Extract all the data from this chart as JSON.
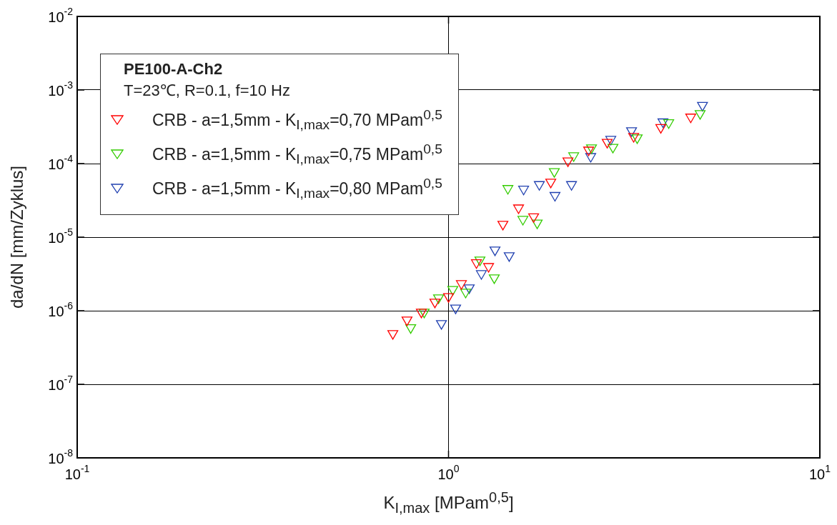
{
  "chart_data": {
    "type": "scatter",
    "xlabel": "K$_{I,max}$ [MPam$^{0,5}$]",
    "ylabel": "da/dN [mm/Zyklus]",
    "legend_title": "PE100-A-Ch2",
    "annotations": [
      "T=23℃, R=0.1, f=10 Hz"
    ],
    "log": "xy",
    "xlim": [
      0.1,
      10
    ],
    "ylim": [
      1e-08,
      0.01
    ],
    "xticks": [
      {
        "value": 0.1,
        "label": "10$^{-1}$"
      },
      {
        "value": 1,
        "label": "10$^{0}$"
      },
      {
        "value": 10,
        "label": "10$^{1}$"
      }
    ],
    "yticks": [
      {
        "value": 1e-08,
        "label": "10$^{-8}$"
      },
      {
        "value": 1e-07,
        "label": "10$^{-7}$"
      },
      {
        "value": 1e-06,
        "label": "10$^{-6}$"
      },
      {
        "value": 1e-05,
        "label": "10$^{-5}$"
      },
      {
        "value": 0.0001,
        "label": "10$^{-4}$"
      },
      {
        "value": 0.001,
        "label": "10$^{-3}$"
      },
      {
        "value": 0.01,
        "label": "10$^{-2}$"
      }
    ],
    "grid": true,
    "legend": "top left",
    "marker": "triangle",
    "series": [
      {
        "name": "CRB - a=1,5mm - K$_{I,max}$=0,70 MPam$^{0,5}$",
        "color": "#ff0000",
        "x": [
          0.708,
          0.773,
          0.845,
          0.919,
          1.0,
          1.083,
          1.189,
          1.282,
          1.401,
          1.544,
          1.695,
          1.885,
          2.097,
          2.384,
          2.675,
          3.152,
          3.73,
          4.49
        ],
        "values": [
          4.9e-07,
          7.5e-07,
          9.6e-07,
          1.31e-06,
          1.56e-06,
          2.34e-06,
          4.5e-06,
          4e-06,
          1.5e-05,
          2.5e-05,
          1.9e-05,
          5.6e-05,
          0.000109,
          0.000153,
          0.000195,
          0.000234,
          0.00031,
          0.00043
        ]
      },
      {
        "name": "CRB - a=1,5mm - K$_{I,max}$=0,75 MPam$^{0,5}$",
        "color": "#33cc00",
        "x": [
          0.791,
          0.86,
          0.94,
          1.027,
          1.112,
          1.215,
          1.328,
          1.445,
          1.586,
          1.733,
          1.927,
          2.173,
          2.427,
          2.772,
          3.222,
          3.917,
          4.76
        ],
        "values": [
          5.9e-07,
          9.6e-07,
          1.5e-06,
          1.95e-06,
          1.79e-06,
          4.9e-06,
          2.8e-06,
          4.6e-05,
          1.75e-05,
          1.56e-05,
          7.8e-05,
          0.000128,
          0.000164,
          0.000167,
          0.000224,
          0.00036,
          0.00048
        ]
      },
      {
        "name": "CRB - a=1,5mm - K$_{I,max}$=0,80 MPam$^{0,5}$",
        "color": "#2040b0",
        "x": [
          0.957,
          1.045,
          1.137,
          1.226,
          1.334,
          1.457,
          1.593,
          1.756,
          1.935,
          2.144,
          2.415,
          2.735,
          3.111,
          3.78,
          4.83
        ],
        "values": [
          6.7e-07,
          1.09e-06,
          2.05e-06,
          3.2e-06,
          6.7e-06,
          5.6e-06,
          4.5e-05,
          5.2e-05,
          3.7e-05,
          5.2e-05,
          0.000125,
          0.000214,
          0.00028,
          0.00037,
          0.00062
        ]
      }
    ]
  }
}
